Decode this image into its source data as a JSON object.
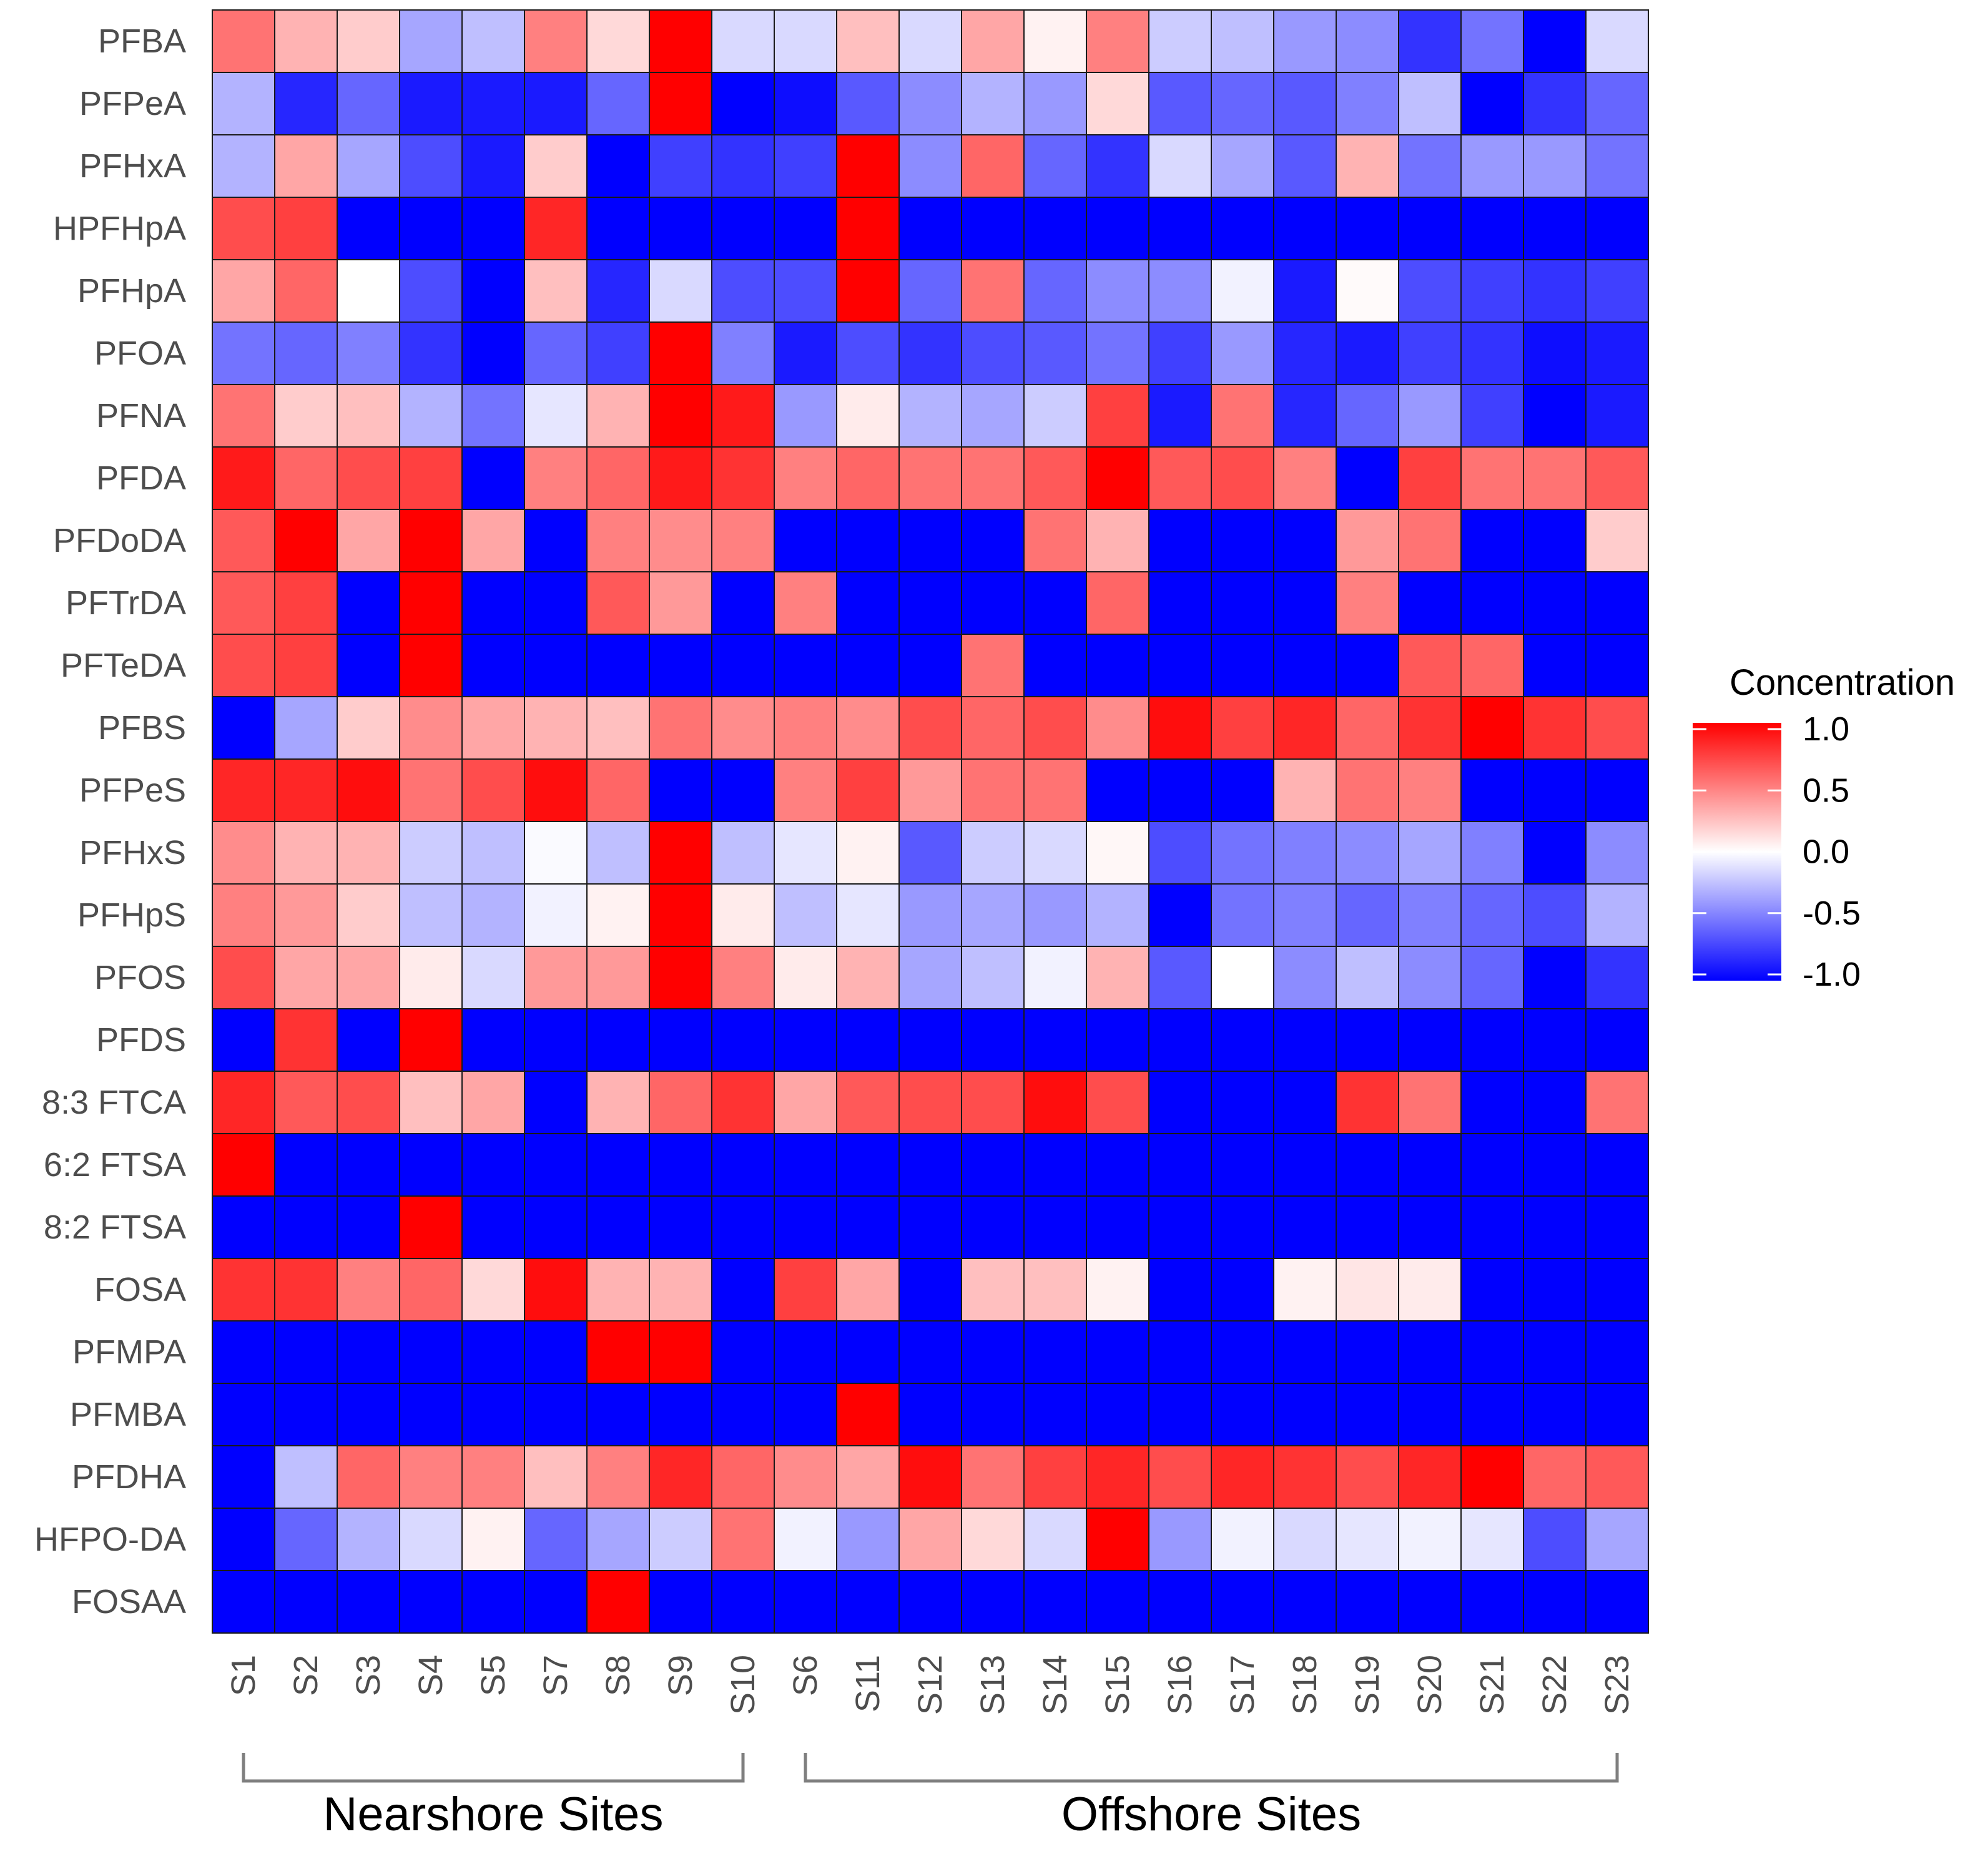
{
  "chart_data": {
    "type": "heatmap",
    "title": "",
    "xlabel": "",
    "ylabel": "",
    "rows": [
      "PFBA",
      "PFPeA",
      "PFHxA",
      "HPFHpA",
      "PFHpA",
      "PFOA",
      "PFNA",
      "PFDA",
      "PFDoDA",
      "PFTrDA",
      "PFTeDA",
      "PFBS",
      "PFPeS",
      "PFHxS",
      "PFHpS",
      "PFOS",
      "PFDS",
      "8:3 FTCA",
      "6:2 FTSA",
      "8:2 FTSA",
      "FOSA",
      "PFMPA",
      "PFMBA",
      "PFDHA",
      "HFPO-DA",
      "FOSAA"
    ],
    "columns": [
      "S1",
      "S2",
      "S3",
      "S4",
      "S5",
      "S7",
      "S8",
      "S9",
      "S10",
      "S6",
      "S11",
      "S12",
      "S13",
      "S14",
      "S15",
      "S16",
      "S17",
      "S18",
      "S19",
      "S20",
      "S21",
      "S22",
      "S23"
    ],
    "values": [
      [
        0.55,
        0.3,
        0.2,
        -0.35,
        -0.25,
        0.5,
        0.15,
        1.0,
        -0.15,
        -0.15,
        0.25,
        -0.15,
        0.35,
        0.05,
        0.5,
        -0.2,
        -0.25,
        -0.4,
        -0.45,
        -0.8,
        -0.55,
        -1.0,
        -0.15
      ],
      [
        -0.3,
        -0.85,
        -0.6,
        -0.9,
        -0.9,
        -0.9,
        -0.6,
        1.0,
        -1.0,
        -0.95,
        -0.65,
        -0.45,
        -0.3,
        -0.4,
        0.15,
        -0.65,
        -0.6,
        -0.65,
        -0.5,
        -0.25,
        -1.0,
        -0.8,
        -0.6
      ],
      [
        -0.3,
        0.35,
        -0.35,
        -0.7,
        -0.9,
        0.2,
        -1.0,
        -0.75,
        -0.8,
        -0.75,
        1.0,
        -0.45,
        0.6,
        -0.6,
        -0.8,
        -0.15,
        -0.35,
        -0.65,
        0.3,
        -0.55,
        -0.4,
        -0.4,
        -0.55
      ],
      [
        0.7,
        0.75,
        -1.0,
        -1.0,
        -1.0,
        0.85,
        -1.0,
        -1.0,
        -1.0,
        -1.0,
        1.0,
        -1.0,
        -1.0,
        -1.0,
        -1.0,
        -1.0,
        -1.0,
        -1.0,
        -1.0,
        -1.0,
        -1.0,
        -1.0,
        -1.0
      ],
      [
        0.35,
        0.6,
        0.0,
        -0.7,
        -1.0,
        0.25,
        -0.85,
        -0.15,
        -0.7,
        -0.7,
        1.0,
        -0.6,
        0.55,
        -0.6,
        -0.45,
        -0.45,
        -0.05,
        -0.9,
        0.02,
        -0.7,
        -0.75,
        -0.8,
        -0.75
      ],
      [
        -0.55,
        -0.6,
        -0.5,
        -0.8,
        -1.0,
        -0.6,
        -0.75,
        1.0,
        -0.5,
        -0.9,
        -0.7,
        -0.8,
        -0.7,
        -0.65,
        -0.55,
        -0.75,
        -0.4,
        -0.85,
        -0.9,
        -0.75,
        -0.8,
        -0.95,
        -0.9
      ],
      [
        0.55,
        0.2,
        0.25,
        -0.3,
        -0.55,
        -0.1,
        0.3,
        1.0,
        0.9,
        -0.4,
        0.08,
        -0.3,
        -0.35,
        -0.2,
        0.75,
        -0.9,
        0.55,
        -0.85,
        -0.6,
        -0.4,
        -0.75,
        -1.0,
        -0.9
      ],
      [
        0.9,
        0.6,
        0.7,
        0.75,
        -1.0,
        0.5,
        0.6,
        0.9,
        0.8,
        0.5,
        0.6,
        0.55,
        0.55,
        0.65,
        1.0,
        0.65,
        0.7,
        0.5,
        -1.0,
        0.75,
        0.55,
        0.55,
        0.65
      ],
      [
        0.65,
        1.0,
        0.35,
        1.0,
        0.35,
        -1.0,
        0.5,
        0.45,
        0.5,
        -1.0,
        -1.0,
        -1.0,
        -1.0,
        0.55,
        0.3,
        -1.0,
        -1.0,
        -1.0,
        0.4,
        0.55,
        -1.0,
        -1.0,
        0.2
      ],
      [
        0.65,
        0.75,
        -1.0,
        1.0,
        -1.0,
        -1.0,
        0.65,
        0.4,
        -1.0,
        0.5,
        -1.0,
        -1.0,
        -1.0,
        -1.0,
        0.6,
        -1.0,
        -1.0,
        -1.0,
        0.5,
        -1.0,
        -1.0,
        -1.0,
        -1.0
      ],
      [
        0.7,
        0.75,
        -1.0,
        1.0,
        -1.0,
        -1.0,
        -1.0,
        -1.0,
        -1.0,
        -1.0,
        -1.0,
        -1.0,
        0.55,
        -1.0,
        -1.0,
        -1.0,
        -1.0,
        -1.0,
        -1.0,
        0.65,
        0.6,
        -1.0,
        -1.0
      ],
      [
        -1.0,
        -0.35,
        0.2,
        0.45,
        0.35,
        0.3,
        0.25,
        0.55,
        0.45,
        0.5,
        0.45,
        0.7,
        0.6,
        0.7,
        0.45,
        0.95,
        0.75,
        0.85,
        0.6,
        0.8,
        1.0,
        0.8,
        0.7
      ],
      [
        0.85,
        0.85,
        0.95,
        0.55,
        0.7,
        0.95,
        0.6,
        -1.0,
        -1.0,
        0.5,
        0.75,
        0.4,
        0.55,
        0.55,
        -1.0,
        -1.0,
        -1.0,
        0.3,
        0.55,
        0.5,
        -1.0,
        -1.0,
        -1.0
      ],
      [
        0.45,
        0.3,
        0.3,
        -0.2,
        -0.25,
        -0.02,
        -0.25,
        1.0,
        -0.25,
        -0.1,
        0.05,
        -0.65,
        -0.2,
        -0.15,
        0.03,
        -0.7,
        -0.55,
        -0.5,
        -0.45,
        -0.35,
        -0.5,
        -1.0,
        -0.45
      ],
      [
        0.5,
        0.4,
        0.2,
        -0.25,
        -0.3,
        -0.05,
        0.05,
        1.0,
        0.08,
        -0.25,
        -0.1,
        -0.4,
        -0.35,
        -0.4,
        -0.3,
        -1.0,
        -0.55,
        -0.5,
        -0.6,
        -0.5,
        -0.6,
        -0.7,
        -0.3
      ],
      [
        0.7,
        0.35,
        0.35,
        0.08,
        -0.15,
        0.4,
        0.4,
        1.0,
        0.5,
        0.08,
        0.3,
        -0.35,
        -0.25,
        -0.05,
        0.3,
        -0.65,
        0.0,
        -0.45,
        -0.25,
        -0.45,
        -0.6,
        -1.0,
        -0.8
      ],
      [
        -1.0,
        0.8,
        -1.0,
        1.0,
        -1.0,
        -1.0,
        -1.0,
        -1.0,
        -1.0,
        -1.0,
        -1.0,
        -1.0,
        -1.0,
        -1.0,
        -1.0,
        -1.0,
        -1.0,
        -1.0,
        -1.0,
        -1.0,
        -1.0,
        -1.0,
        -1.0
      ],
      [
        0.85,
        0.65,
        0.7,
        0.25,
        0.35,
        -1.0,
        0.3,
        0.6,
        0.8,
        0.35,
        0.65,
        0.7,
        0.7,
        0.95,
        0.7,
        -1.0,
        -1.0,
        -1.0,
        0.8,
        0.55,
        -1.0,
        -1.0,
        0.55
      ],
      [
        1.0,
        -1.0,
        -1.0,
        -1.0,
        -1.0,
        -1.0,
        -1.0,
        -1.0,
        -1.0,
        -1.0,
        -1.0,
        -1.0,
        -1.0,
        -1.0,
        -1.0,
        -1.0,
        -1.0,
        -1.0,
        -1.0,
        -1.0,
        -1.0,
        -1.0,
        -1.0
      ],
      [
        -1.0,
        -1.0,
        -1.0,
        1.0,
        -1.0,
        -1.0,
        -1.0,
        -1.0,
        -1.0,
        -1.0,
        -1.0,
        -1.0,
        -1.0,
        -1.0,
        -1.0,
        -1.0,
        -1.0,
        -1.0,
        -1.0,
        -1.0,
        -1.0,
        -1.0,
        -1.0
      ],
      [
        0.8,
        0.8,
        0.5,
        0.6,
        0.15,
        0.95,
        0.3,
        0.3,
        -1.0,
        0.75,
        0.35,
        -1.0,
        0.25,
        0.25,
        0.05,
        -1.0,
        -1.0,
        0.05,
        0.1,
        0.08,
        -1.0,
        -1.0,
        -1.0
      ],
      [
        -1.0,
        -1.0,
        -1.0,
        -1.0,
        -1.0,
        -1.0,
        1.0,
        1.0,
        -1.0,
        -1.0,
        -1.0,
        -1.0,
        -1.0,
        -1.0,
        -1.0,
        -1.0,
        -1.0,
        -1.0,
        -1.0,
        -1.0,
        -1.0,
        -1.0,
        -1.0
      ],
      [
        -1.0,
        -1.0,
        -1.0,
        -1.0,
        -1.0,
        -1.0,
        -1.0,
        -1.0,
        -1.0,
        -1.0,
        1.0,
        -1.0,
        -1.0,
        -1.0,
        -1.0,
        -1.0,
        -1.0,
        -1.0,
        -1.0,
        -1.0,
        -1.0,
        -1.0,
        -1.0
      ],
      [
        -1.0,
        -0.25,
        0.6,
        0.5,
        0.5,
        0.25,
        0.5,
        0.85,
        0.6,
        0.45,
        0.35,
        0.95,
        0.55,
        0.75,
        0.85,
        0.7,
        0.85,
        0.8,
        0.7,
        0.85,
        1.0,
        0.6,
        0.65
      ],
      [
        -1.0,
        -0.6,
        -0.3,
        -0.15,
        0.05,
        -0.6,
        -0.35,
        -0.2,
        0.55,
        -0.05,
        -0.4,
        0.35,
        0.15,
        -0.15,
        1.0,
        -0.4,
        -0.05,
        -0.15,
        -0.1,
        -0.05,
        -0.1,
        -0.7,
        -0.35
      ],
      [
        -1.0,
        -1.0,
        -1.0,
        -1.0,
        -1.0,
        -1.0,
        1.0,
        -1.0,
        -1.0,
        -1.0,
        -1.0,
        -1.0,
        -1.0,
        -1.0,
        -1.0,
        -1.0,
        -1.0,
        -1.0,
        -1.0,
        -1.0,
        -1.0,
        -1.0,
        -1.0
      ]
    ],
    "color_range": [
      -1.0,
      1.0
    ],
    "colors": {
      "low": "#0000FF",
      "mid": "#FFFFFF",
      "high": "#FF0000",
      "cell_border": "#1a1a1a",
      "bracket": "#7f7f7f"
    },
    "legend": {
      "title": "Concentration",
      "ticks": [
        1.0,
        0.5,
        0.0,
        -0.5,
        -1.0
      ],
      "tick_labels": [
        "1.0",
        "0.5",
        "0.0",
        "-0.5",
        "-1.0"
      ],
      "position": "right"
    },
    "groups": [
      {
        "label": "Nearshore Sites",
        "from": "S1",
        "to": "S10"
      },
      {
        "label": "Offshore Sites",
        "from": "S6",
        "to": "S23"
      }
    ]
  }
}
